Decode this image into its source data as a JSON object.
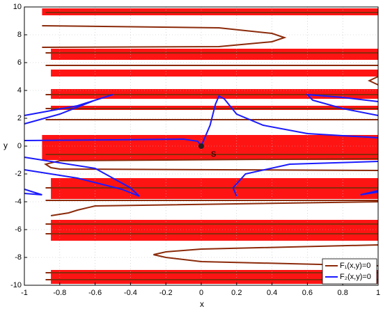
{
  "chart_data": {
    "type": "contour",
    "xlabel": "x",
    "ylabel": "y",
    "xlim": [
      -1,
      1
    ],
    "ylim": [
      -10,
      10
    ],
    "xticks": [
      -1,
      -0.8,
      -0.6,
      -0.4,
      -0.2,
      0,
      0.2,
      0.4,
      0.6,
      0.8,
      1
    ],
    "yticks": [
      -10,
      -8,
      -6,
      -4,
      -2,
      0,
      2,
      4,
      6,
      8,
      10
    ],
    "grid": true,
    "legend": "lower right",
    "red_bands": {
      "color": "#ff0000",
      "bands": [
        {
          "x": [
            -0.9,
            1
          ],
          "y": [
            9.4,
            9.9
          ]
        },
        {
          "x": [
            -0.85,
            1
          ],
          "y": [
            6.2,
            7.0
          ]
        },
        {
          "x": [
            -0.85,
            1
          ],
          "y": [
            5.0,
            5.5
          ]
        },
        {
          "x": [
            -0.85,
            1
          ],
          "y": [
            3.4,
            4.1
          ]
        },
        {
          "x": [
            -0.85,
            1
          ],
          "y": [
            2.6,
            2.9
          ]
        },
        {
          "x": [
            -0.9,
            1
          ],
          "y": [
            -1.0,
            0.8
          ]
        },
        {
          "x": [
            -0.85,
            1
          ],
          "y": [
            -3.8,
            -2.3
          ]
        },
        {
          "x": [
            -0.85,
            1
          ],
          "y": [
            -6.8,
            -5.3
          ]
        },
        {
          "x": [
            -0.85,
            1
          ],
          "y": [
            -9.9,
            -8.9
          ]
        }
      ]
    },
    "series": [
      {
        "name": "F₁(x,y)=0",
        "color": "#8b2a0a",
        "curves": [
          {
            "x": [
              -0.9,
              0.1,
              0.4,
              0.47,
              0.4,
              0.1,
              -0.9
            ],
            "y": [
              8.65,
              8.5,
              8.1,
              7.8,
              7.5,
              7.15,
              7.1
            ]
          },
          {
            "x": [
              1,
              0,
              -0.2,
              -0.27,
              -0.2,
              0,
              1
            ],
            "y": [
              -7.1,
              -7.4,
              -7.6,
              -7.8,
              -8.0,
              -8.3,
              -8.6
            ]
          },
          {
            "x": [
              1,
              -0.8,
              -0.88,
              -0.85,
              -0.8,
              1
            ],
            "y": [
              -0.9,
              -1.05,
              -1.3,
              -1.55,
              -1.65,
              -1.75
            ]
          },
          {
            "x": [
              1,
              -0.6,
              -0.7,
              -0.75,
              -0.85
            ],
            "y": [
              -4.0,
              -4.3,
              -4.6,
              -4.8,
              -5.0
            ]
          },
          {
            "x": [
              1,
              0.95,
              1
            ],
            "y": [
              5.0,
              4.7,
              4.4
            ]
          },
          {
            "x": [
              -0.88,
              1
            ],
            "y": [
              9.6,
              9.6
            ]
          },
          {
            "x": [
              -0.88,
              1
            ],
            "y": [
              6.7,
              6.7
            ]
          },
          {
            "x": [
              -0.88,
              1
            ],
            "y": [
              5.8,
              5.8
            ]
          },
          {
            "x": [
              -0.88,
              1
            ],
            "y": [
              3.7,
              3.7
            ]
          },
          {
            "x": [
              -0.88,
              1
            ],
            "y": [
              2.7,
              2.7
            ]
          },
          {
            "x": [
              -0.88,
              1
            ],
            "y": [
              1.9,
              1.9
            ]
          },
          {
            "x": [
              -0.88,
              1
            ],
            "y": [
              -0.6,
              -0.6
            ]
          },
          {
            "x": [
              -0.88,
              1
            ],
            "y": [
              -3.0,
              -3.0
            ]
          },
          {
            "x": [
              -0.88,
              1
            ],
            "y": [
              -3.9,
              -3.9
            ]
          },
          {
            "x": [
              -0.88,
              1
            ],
            "y": [
              -5.6,
              -5.6
            ]
          },
          {
            "x": [
              -0.88,
              1
            ],
            "y": [
              -6.3,
              -6.3
            ]
          },
          {
            "x": [
              -0.88,
              1
            ],
            "y": [
              -9.1,
              -9.1
            ]
          },
          {
            "x": [
              -0.88,
              1
            ],
            "y": [
              -9.6,
              -9.6
            ]
          }
        ]
      },
      {
        "name": "F₂(x,y)=0",
        "color": "#1a1aff",
        "curves": [
          {
            "x": [
              -1,
              -0.7,
              -0.55,
              -0.5,
              -0.6,
              -0.8,
              -1
            ],
            "y": [
              2.2,
              2.9,
              3.5,
              3.7,
              3.3,
              2.3,
              1.6
            ]
          },
          {
            "x": [
              0,
              0.02,
              0.05,
              0.08,
              0.1,
              0.13,
              0.2,
              0.35,
              0.6,
              1
            ],
            "y": [
              0,
              0.6,
              1.5,
              3.0,
              3.6,
              3.4,
              2.3,
              1.5,
              0.9,
              0.6
            ]
          },
          {
            "x": [
              -1,
              -0.5,
              -0.1,
              -0.02,
              0
            ],
            "y": [
              0.4,
              0.45,
              0.5,
              0.35,
              0
            ]
          },
          {
            "x": [
              1,
              0.8,
              0.6,
              0.63,
              0.8,
              1
            ],
            "y": [
              3.2,
              3.5,
              3.7,
              3.3,
              2.7,
              2.2
            ]
          },
          {
            "x": [
              -1,
              -0.6,
              -0.4,
              -0.35,
              -0.45,
              -0.7,
              -1
            ],
            "y": [
              -0.8,
              -1.6,
              -3.0,
              -3.6,
              -3.1,
              -2.3,
              -1.7
            ]
          },
          {
            "x": [
              -1,
              -0.95,
              -0.9,
              -1
            ],
            "y": [
              -3.1,
              -3.3,
              -3.5,
              -3.4
            ]
          },
          {
            "x": [
              0.2,
              0.18,
              0.25,
              0.5,
              1
            ],
            "y": [
              -3.6,
              -3.0,
              -2.0,
              -1.3,
              -1.1
            ]
          },
          {
            "x": [
              1,
              0.9,
              0.95,
              1
            ],
            "y": [
              -3.2,
              -3.5,
              -3.4,
              -3.3
            ]
          }
        ]
      }
    ],
    "marker": {
      "x": 0,
      "y": 0,
      "label": "S"
    }
  }
}
